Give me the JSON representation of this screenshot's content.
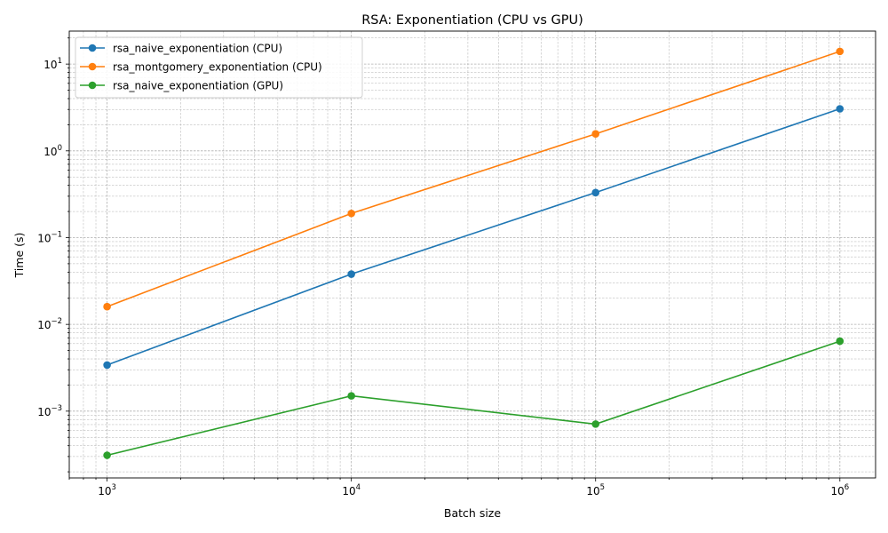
{
  "chart_data": {
    "type": "line",
    "title": "RSA: Exponentiation (CPU vs GPU)",
    "xlabel": "Batch size",
    "ylabel": "Time (s)",
    "xscale": "log",
    "yscale": "log",
    "xlim": [
      700,
      1400000
    ],
    "ylim": [
      0.00017,
      24
    ],
    "grid": "major and minor (dashed)",
    "legend_position": "top-left",
    "x": [
      1000,
      10000,
      100000,
      1000000
    ],
    "series": [
      {
        "name": "rsa_naive_exponentiation (CPU)",
        "color": "#1f77b4",
        "values": [
          0.0034,
          0.038,
          0.33,
          3.05
        ]
      },
      {
        "name": "rsa_montgomery_exponentiation (CPU)",
        "color": "#ff7f0e",
        "values": [
          0.016,
          0.19,
          1.57,
          14.0
        ]
      },
      {
        "name": "rsa_naive_exponentiation (GPU)",
        "color": "#2ca02c",
        "values": [
          0.00031,
          0.0015,
          0.00071,
          0.0064
        ]
      }
    ],
    "x_ticks": [
      {
        "value": 1000,
        "base": "10",
        "exp": "3"
      },
      {
        "value": 10000,
        "base": "10",
        "exp": "4"
      },
      {
        "value": 100000,
        "base": "10",
        "exp": "5"
      },
      {
        "value": 1000000,
        "base": "10",
        "exp": "6"
      }
    ],
    "y_ticks": [
      {
        "value": 0.001,
        "base": "10",
        "exp": "−3"
      },
      {
        "value": 0.01,
        "base": "10",
        "exp": "−2"
      },
      {
        "value": 0.1,
        "base": "10",
        "exp": "−1"
      },
      {
        "value": 1,
        "base": "10",
        "exp": "0"
      },
      {
        "value": 10,
        "base": "10",
        "exp": "1"
      }
    ]
  }
}
